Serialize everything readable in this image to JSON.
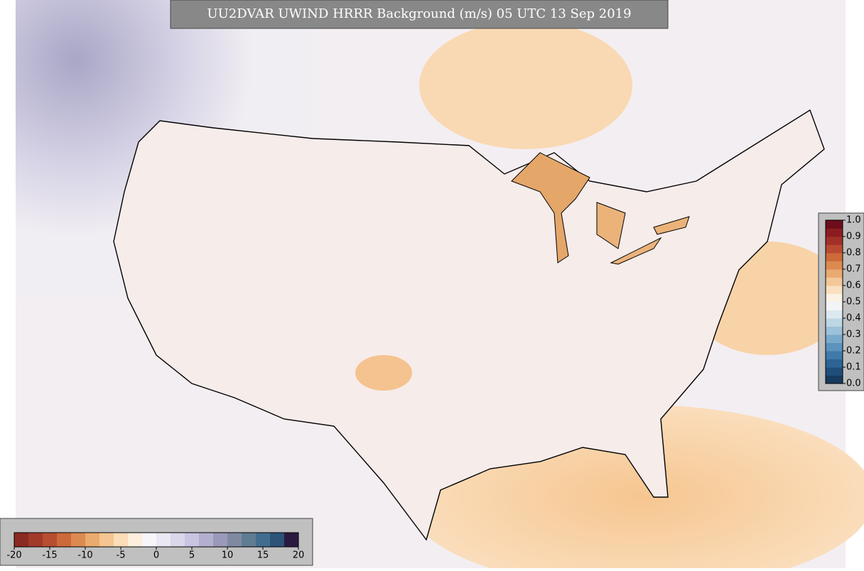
{
  "title": "UU2DVAR UWIND HRRR Background (m/s) 05 UTC 13 Sep 2019",
  "wind_colorbar": {
    "ticks": [
      -20,
      -15,
      -10,
      -5,
      0,
      5,
      10,
      15,
      20
    ],
    "colors": [
      "#8b2a22",
      "#a23a2a",
      "#b84e30",
      "#cc6a3a",
      "#dc8a50",
      "#ebaa6e",
      "#f5c690",
      "#fbddb8",
      "#fdeedd",
      "#f7f5f7",
      "#eae8f2",
      "#dad7ea",
      "#c9c4e0",
      "#b3b0cf",
      "#9b99bb",
      "#7f8aa0",
      "#5f7c93",
      "#426d8e",
      "#2d5379",
      "#2b1a3f"
    ]
  },
  "ratio_colorbar": {
    "ticks": [
      {
        "value": 0,
        "label": "0.0"
      },
      0.1,
      0.2,
      0.3,
      0.4,
      0.5,
      0.6,
      0.7,
      0.8,
      0.9,
      {
        "value": 1,
        "label": "1.0"
      }
    ],
    "colors": [
      "#173a5e",
      "#1f4e7a",
      "#2c6494",
      "#3f7aaa",
      "#5b93bd",
      "#7aaacb",
      "#9cc1d9",
      "#bed7e5",
      "#dde9f0",
      "#f2f4f6",
      "#fbf2e6",
      "#f8e0c0",
      "#f2c89a",
      "#e9aa72",
      "#dc8a50",
      "#cc6a3a",
      "#b84a30",
      "#a33028",
      "#8c1c22",
      "#6b0e1a"
    ]
  }
}
